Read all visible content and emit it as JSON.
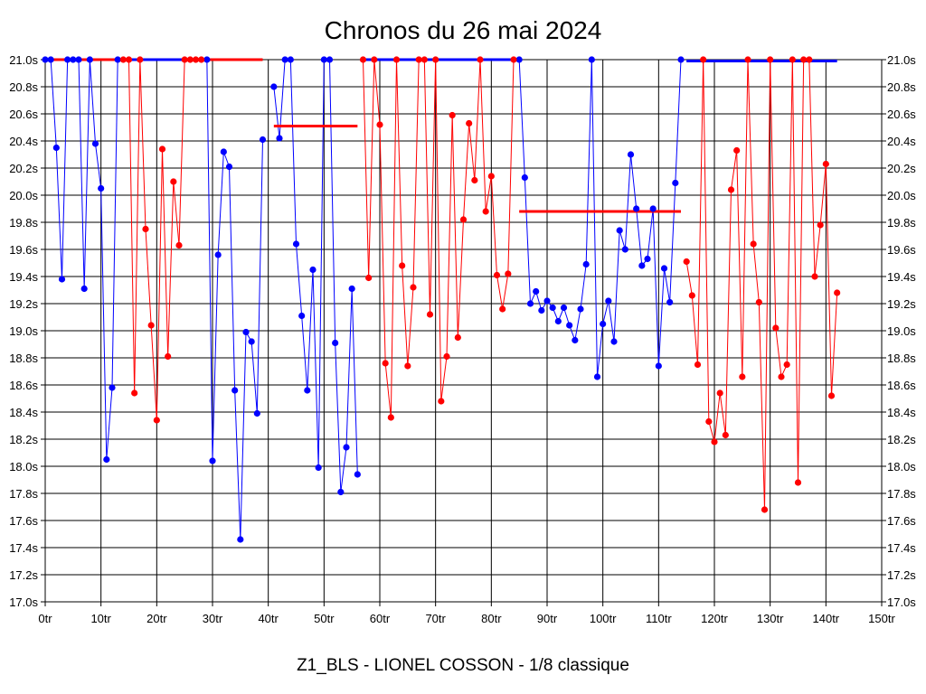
{
  "chart_data": {
    "type": "line",
    "title": "Chronos du 26 mai 2024",
    "caption": "Z1_BLS - LIONEL COSSON - 1/8 classique",
    "xlim": [
      0,
      150
    ],
    "ylim": [
      17.0,
      21.0
    ],
    "grid": true,
    "x_ticks": [
      0,
      10,
      20,
      30,
      40,
      50,
      60,
      70,
      80,
      90,
      100,
      110,
      120,
      130,
      140,
      150
    ],
    "x_tick_labels": [
      "0tr",
      "10tr",
      "20tr",
      "30tr",
      "40tr",
      "50tr",
      "60tr",
      "70tr",
      "80tr",
      "90tr",
      "100tr",
      "110tr",
      "120tr",
      "130tr",
      "140tr",
      "150tr"
    ],
    "y_ticks": [
      21.0,
      20.8,
      20.6,
      20.4,
      20.2,
      20.0,
      19.8,
      19.6,
      19.4,
      19.2,
      19.0,
      18.8,
      18.6,
      18.4,
      18.2,
      18.0,
      17.8,
      17.6,
      17.4,
      17.2,
      17.0
    ],
    "y_tick_labels": [
      "21.0s",
      "20.8s",
      "20.6s",
      "20.4s",
      "20.2s",
      "20.0s",
      "19.8s",
      "19.6s",
      "19.4s",
      "19.2s",
      "19.0s",
      "18.8s",
      "18.6s",
      "18.4s",
      "18.2s",
      "18.0s",
      "17.8s",
      "17.6s",
      "17.4s",
      "17.2s",
      "17.0s"
    ],
    "series": [
      {
        "color": "#0000ff",
        "x": [
          0,
          1,
          2,
          3,
          4,
          5,
          6,
          7,
          8,
          9,
          10,
          11,
          12,
          13,
          29,
          30,
          31,
          32,
          33,
          34,
          35,
          36,
          37,
          38,
          39,
          41,
          42,
          43,
          44,
          45,
          46,
          47,
          48,
          49,
          50,
          51,
          52,
          53,
          54,
          55,
          56,
          85,
          86,
          87,
          88,
          89,
          90,
          91,
          92,
          93,
          94,
          95,
          96,
          97,
          98,
          99,
          100,
          101,
          102,
          103,
          104,
          105,
          106,
          107,
          108,
          109,
          110,
          111,
          112,
          113,
          114
        ],
        "y": [
          21.0,
          21.0,
          20.35,
          19.38,
          21.0,
          21.0,
          21.0,
          19.31,
          21.0,
          20.38,
          20.05,
          18.05,
          18.58,
          21.0,
          21.0,
          18.04,
          19.56,
          20.32,
          20.21,
          18.56,
          17.46,
          18.99,
          18.92,
          18.39,
          20.41,
          20.8,
          20.42,
          21.0,
          21.0,
          19.64,
          19.11,
          18.56,
          19.45,
          17.99,
          21.0,
          21.0,
          18.91,
          17.81,
          18.14,
          19.31,
          17.94,
          21.0,
          20.13,
          19.2,
          19.29,
          19.15,
          19.22,
          19.17,
          19.07,
          19.17,
          19.04,
          18.93,
          19.16,
          19.49,
          21.0,
          18.66,
          19.05,
          19.22,
          18.92,
          19.74,
          19.6,
          20.3,
          19.9,
          19.48,
          19.53,
          19.9,
          18.74,
          19.46,
          19.21,
          20.09,
          21.0
        ],
        "segments": [
          [
            [
              0,
              1
            ],
            [
              1,
              2
            ],
            [
              2,
              3
            ],
            [
              3,
              4
            ],
            [
              4,
              5
            ],
            [
              5,
              6
            ],
            [
              6,
              7
            ],
            [
              7,
              8
            ],
            [
              8,
              9
            ],
            [
              9,
              10
            ],
            [
              10,
              11
            ],
            [
              11,
              12
            ],
            [
              12,
              13
            ]
          ],
          [
            [
              29,
              30
            ],
            [
              30,
              31
            ],
            [
              31,
              32
            ],
            [
              32,
              33
            ],
            [
              33,
              34
            ],
            [
              34,
              35
            ],
            [
              35,
              36
            ],
            [
              36,
              37
            ],
            [
              37,
              38
            ],
            [
              38,
              39
            ]
          ],
          [
            [
              41,
              42
            ],
            [
              42,
              43
            ],
            [
              43,
              44
            ],
            [
              44,
              45
            ],
            [
              45,
              46
            ],
            [
              46,
              47
            ],
            [
              47,
              48
            ],
            [
              48,
              49
            ],
            [
              49,
              50
            ],
            [
              50,
              51
            ],
            [
              51,
              52
            ],
            [
              52,
              53
            ],
            [
              53,
              54
            ],
            [
              54,
              55
            ],
            [
              55,
              56
            ]
          ],
          [
            [
              85,
              86
            ],
            [
              86,
              87
            ],
            [
              87,
              88
            ],
            [
              88,
              89
            ],
            [
              89,
              90
            ],
            [
              90,
              91
            ],
            [
              91,
              92
            ],
            [
              92,
              93
            ],
            [
              93,
              94
            ],
            [
              94,
              95
            ],
            [
              95,
              96
            ],
            [
              96,
              97
            ],
            [
              97,
              98
            ],
            [
              98,
              99
            ],
            [
              99,
              100
            ],
            [
              100,
              101
            ],
            [
              101,
              102
            ],
            [
              102,
              103
            ],
            [
              103,
              104
            ],
            [
              104,
              105
            ],
            [
              105,
              106
            ],
            [
              106,
              107
            ],
            [
              107,
              108
            ],
            [
              108,
              109
            ],
            [
              109,
              110
            ],
            [
              110,
              111
            ],
            [
              111,
              112
            ],
            [
              112,
              113
            ],
            [
              113,
              114
            ]
          ]
        ]
      },
      {
        "color": "#ff0000",
        "x": [
          14,
          15,
          16,
          17,
          18,
          19,
          20,
          21,
          22,
          23,
          24,
          25,
          26,
          27,
          28,
          57,
          58,
          59,
          60,
          61,
          62,
          63,
          64,
          65,
          66,
          67,
          68,
          69,
          70,
          71,
          72,
          73,
          74,
          75,
          76,
          77,
          78,
          79,
          80,
          81,
          82,
          83,
          84,
          115,
          116,
          117,
          118,
          119,
          120,
          121,
          122,
          123,
          124,
          125,
          126,
          127,
          128,
          129,
          130,
          131,
          132,
          133,
          134,
          135,
          136,
          137,
          138,
          139,
          140,
          141,
          142
        ],
        "y": [
          21.0,
          21.0,
          18.54,
          21.0,
          19.75,
          19.04,
          18.34,
          20.34,
          18.81,
          20.1,
          19.63,
          21.0,
          21.0,
          21.0,
          21.0,
          21.0,
          19.39,
          21.0,
          20.52,
          18.76,
          18.36,
          21.0,
          19.48,
          18.74,
          19.32,
          21.0,
          21.0,
          19.12,
          21.0,
          18.48,
          18.81,
          20.59,
          18.95,
          19.82,
          20.53,
          20.11,
          21.0,
          19.88,
          20.14,
          19.41,
          19.16,
          19.42,
          21.0,
          19.51,
          19.26,
          18.75,
          21.0,
          18.33,
          18.18,
          18.54,
          18.23,
          20.04,
          20.33,
          18.66,
          21.0,
          19.64,
          19.21,
          17.68,
          21.0,
          19.02,
          18.66,
          18.75,
          21.0,
          17.88,
          21.0,
          21.0,
          19.4,
          19.78,
          20.23,
          18.52,
          19.28
        ],
        "segments": [
          [
            [
              14,
              15
            ],
            [
              15,
              16
            ],
            [
              16,
              17
            ],
            [
              17,
              18
            ],
            [
              18,
              19
            ],
            [
              19,
              20
            ],
            [
              20,
              21
            ],
            [
              21,
              22
            ],
            [
              22,
              23
            ],
            [
              23,
              24
            ],
            [
              24,
              25
            ]
          ],
          [
            [
              57,
              58
            ],
            [
              58,
              59
            ],
            [
              59,
              60
            ],
            [
              60,
              61
            ],
            [
              61,
              62
            ],
            [
              62,
              63
            ],
            [
              63,
              64
            ],
            [
              64,
              65
            ],
            [
              65,
              66
            ],
            [
              66,
              67
            ],
            [
              67,
              68
            ],
            [
              68,
              69
            ],
            [
              69,
              70
            ],
            [
              70,
              71
            ],
            [
              71,
              72
            ],
            [
              72,
              73
            ],
            [
              73,
              74
            ],
            [
              74,
              75
            ],
            [
              75,
              76
            ],
            [
              76,
              77
            ],
            [
              77,
              78
            ],
            [
              78,
              79
            ],
            [
              79,
              80
            ],
            [
              80,
              81
            ],
            [
              81,
              82
            ],
            [
              82,
              83
            ],
            [
              83,
              84
            ]
          ],
          [
            [
              115,
              116
            ],
            [
              116,
              117
            ],
            [
              117,
              118
            ],
            [
              118,
              119
            ],
            [
              119,
              120
            ],
            [
              120,
              121
            ],
            [
              121,
              122
            ],
            [
              122,
              123
            ],
            [
              123,
              124
            ],
            [
              124,
              125
            ],
            [
              125,
              126
            ],
            [
              126,
              127
            ],
            [
              127,
              128
            ],
            [
              128,
              129
            ],
            [
              129,
              130
            ],
            [
              130,
              131
            ],
            [
              131,
              132
            ],
            [
              132,
              133
            ],
            [
              133,
              134
            ],
            [
              134,
              135
            ],
            [
              135,
              136
            ],
            [
              136,
              137
            ],
            [
              137,
              138
            ],
            [
              138,
              139
            ],
            [
              139,
              140
            ],
            [
              140,
              141
            ],
            [
              141,
              142
            ]
          ]
        ]
      }
    ],
    "reference_lines": [
      {
        "color": "#ff0000",
        "x": [
          0,
          39
        ],
        "y": 21.0
      },
      {
        "color": "#0000ff",
        "x": [
          15,
          29
        ],
        "y": 21.0
      },
      {
        "color": "#ff0000",
        "x": [
          41,
          56
        ],
        "y": 20.51
      },
      {
        "color": "#0000ff",
        "x": [
          57,
          85
        ],
        "y": 21.0
      },
      {
        "color": "#ff0000",
        "x": [
          85,
          114
        ],
        "y": 19.88
      },
      {
        "color": "#0000ff",
        "x": [
          115,
          142
        ],
        "y": 20.99
      }
    ]
  }
}
